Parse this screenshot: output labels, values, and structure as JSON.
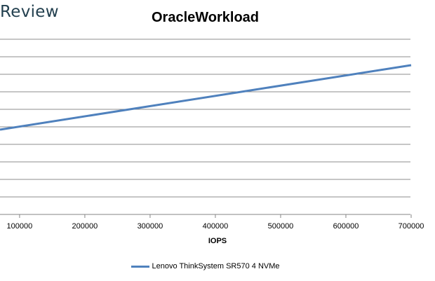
{
  "watermark": {
    "text": "Review"
  },
  "chart_data": {
    "type": "line",
    "title": "OracleWorkload",
    "xlabel": "IOPS",
    "ylabel": "",
    "x_ticks": [
      100000,
      200000,
      300000,
      400000,
      500000,
      600000,
      700000
    ],
    "xlim": [
      70000,
      700000
    ],
    "y_gridlines": 10,
    "grid": true,
    "legend": "bottom-center",
    "series": [
      {
        "name": "Lenovo ThinkSystem SR570 4 NVMe",
        "color": "#4f81bd",
        "x": [
          70000,
          700000
        ],
        "y_relative": [
          0.484,
          0.852
        ]
      }
    ]
  }
}
